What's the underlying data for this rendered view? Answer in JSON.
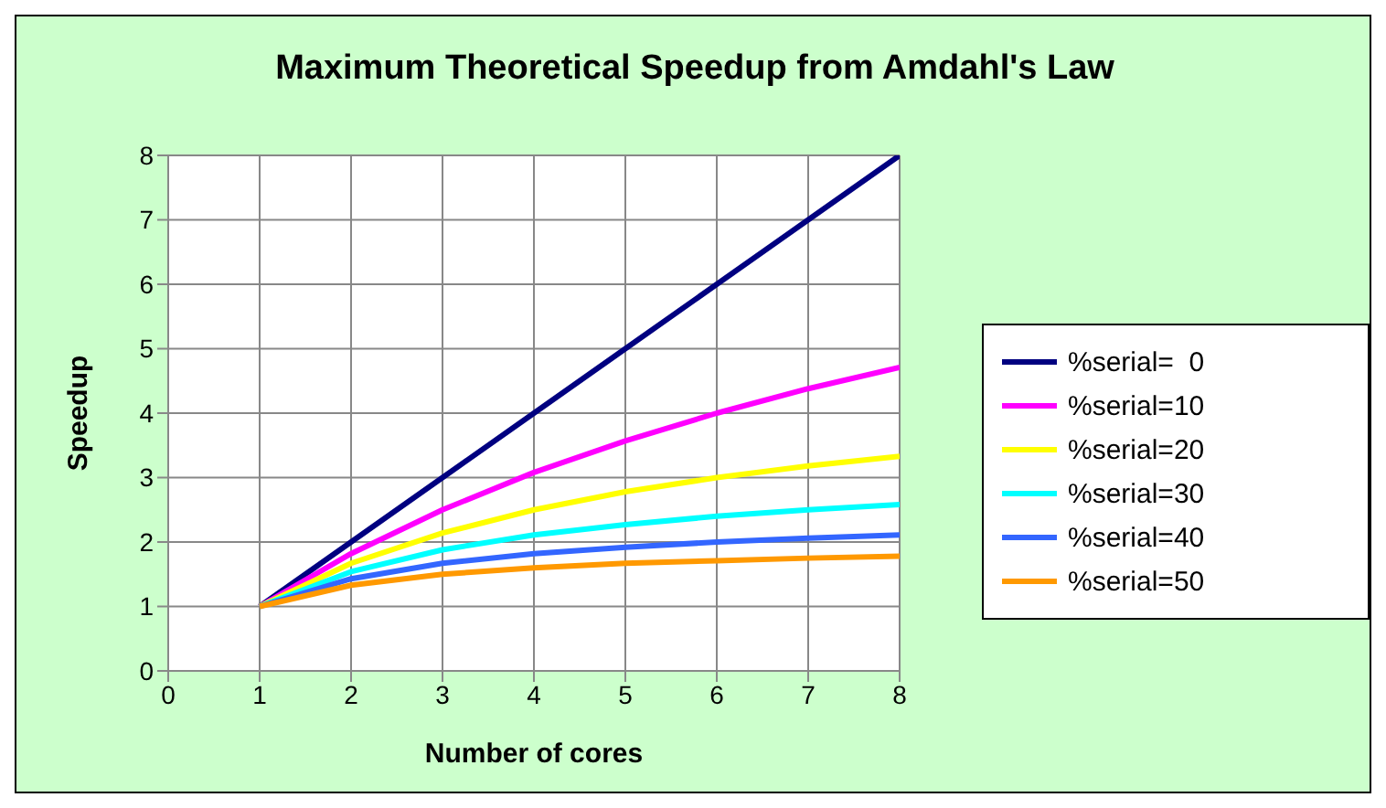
{
  "chart_data": {
    "type": "line",
    "title": "Maximum Theoretical Speedup from Amdahl's Law",
    "xlabel": "Number of cores",
    "ylabel": "Speedup",
    "x": [
      1,
      2,
      3,
      4,
      5,
      6,
      7,
      8
    ],
    "series": [
      {
        "name": "%serial=  0",
        "color": "#000080",
        "values": [
          1,
          2,
          3,
          4,
          5,
          6,
          7,
          8
        ]
      },
      {
        "name": "%serial=10",
        "color": "#ff00ff",
        "values": [
          1,
          1.82,
          2.5,
          3.08,
          3.57,
          4,
          4.38,
          4.71
        ]
      },
      {
        "name": "%serial=20",
        "color": "#ffff00",
        "values": [
          1,
          1.67,
          2.14,
          2.5,
          2.78,
          3,
          3.18,
          3.33
        ]
      },
      {
        "name": "%serial=30",
        "color": "#00ffff",
        "values": [
          1,
          1.54,
          1.88,
          2.11,
          2.27,
          2.4,
          2.5,
          2.58
        ]
      },
      {
        "name": "%serial=40",
        "color": "#3366ff",
        "values": [
          1,
          1.43,
          1.67,
          1.82,
          1.92,
          2,
          2.06,
          2.11
        ]
      },
      {
        "name": "%serial=50",
        "color": "#ff9900",
        "values": [
          1,
          1.33,
          1.5,
          1.6,
          1.67,
          1.71,
          1.75,
          1.78
        ]
      }
    ],
    "xlim": [
      0,
      8
    ],
    "xticks": [
      0,
      1,
      2,
      3,
      4,
      5,
      6,
      7,
      8
    ],
    "ylim": [
      0,
      8
    ],
    "yticks": [
      0,
      1,
      2,
      3,
      4,
      5,
      6,
      7,
      8
    ],
    "grid": true,
    "legend": "right",
    "marker": "none",
    "line_style": "solid"
  }
}
